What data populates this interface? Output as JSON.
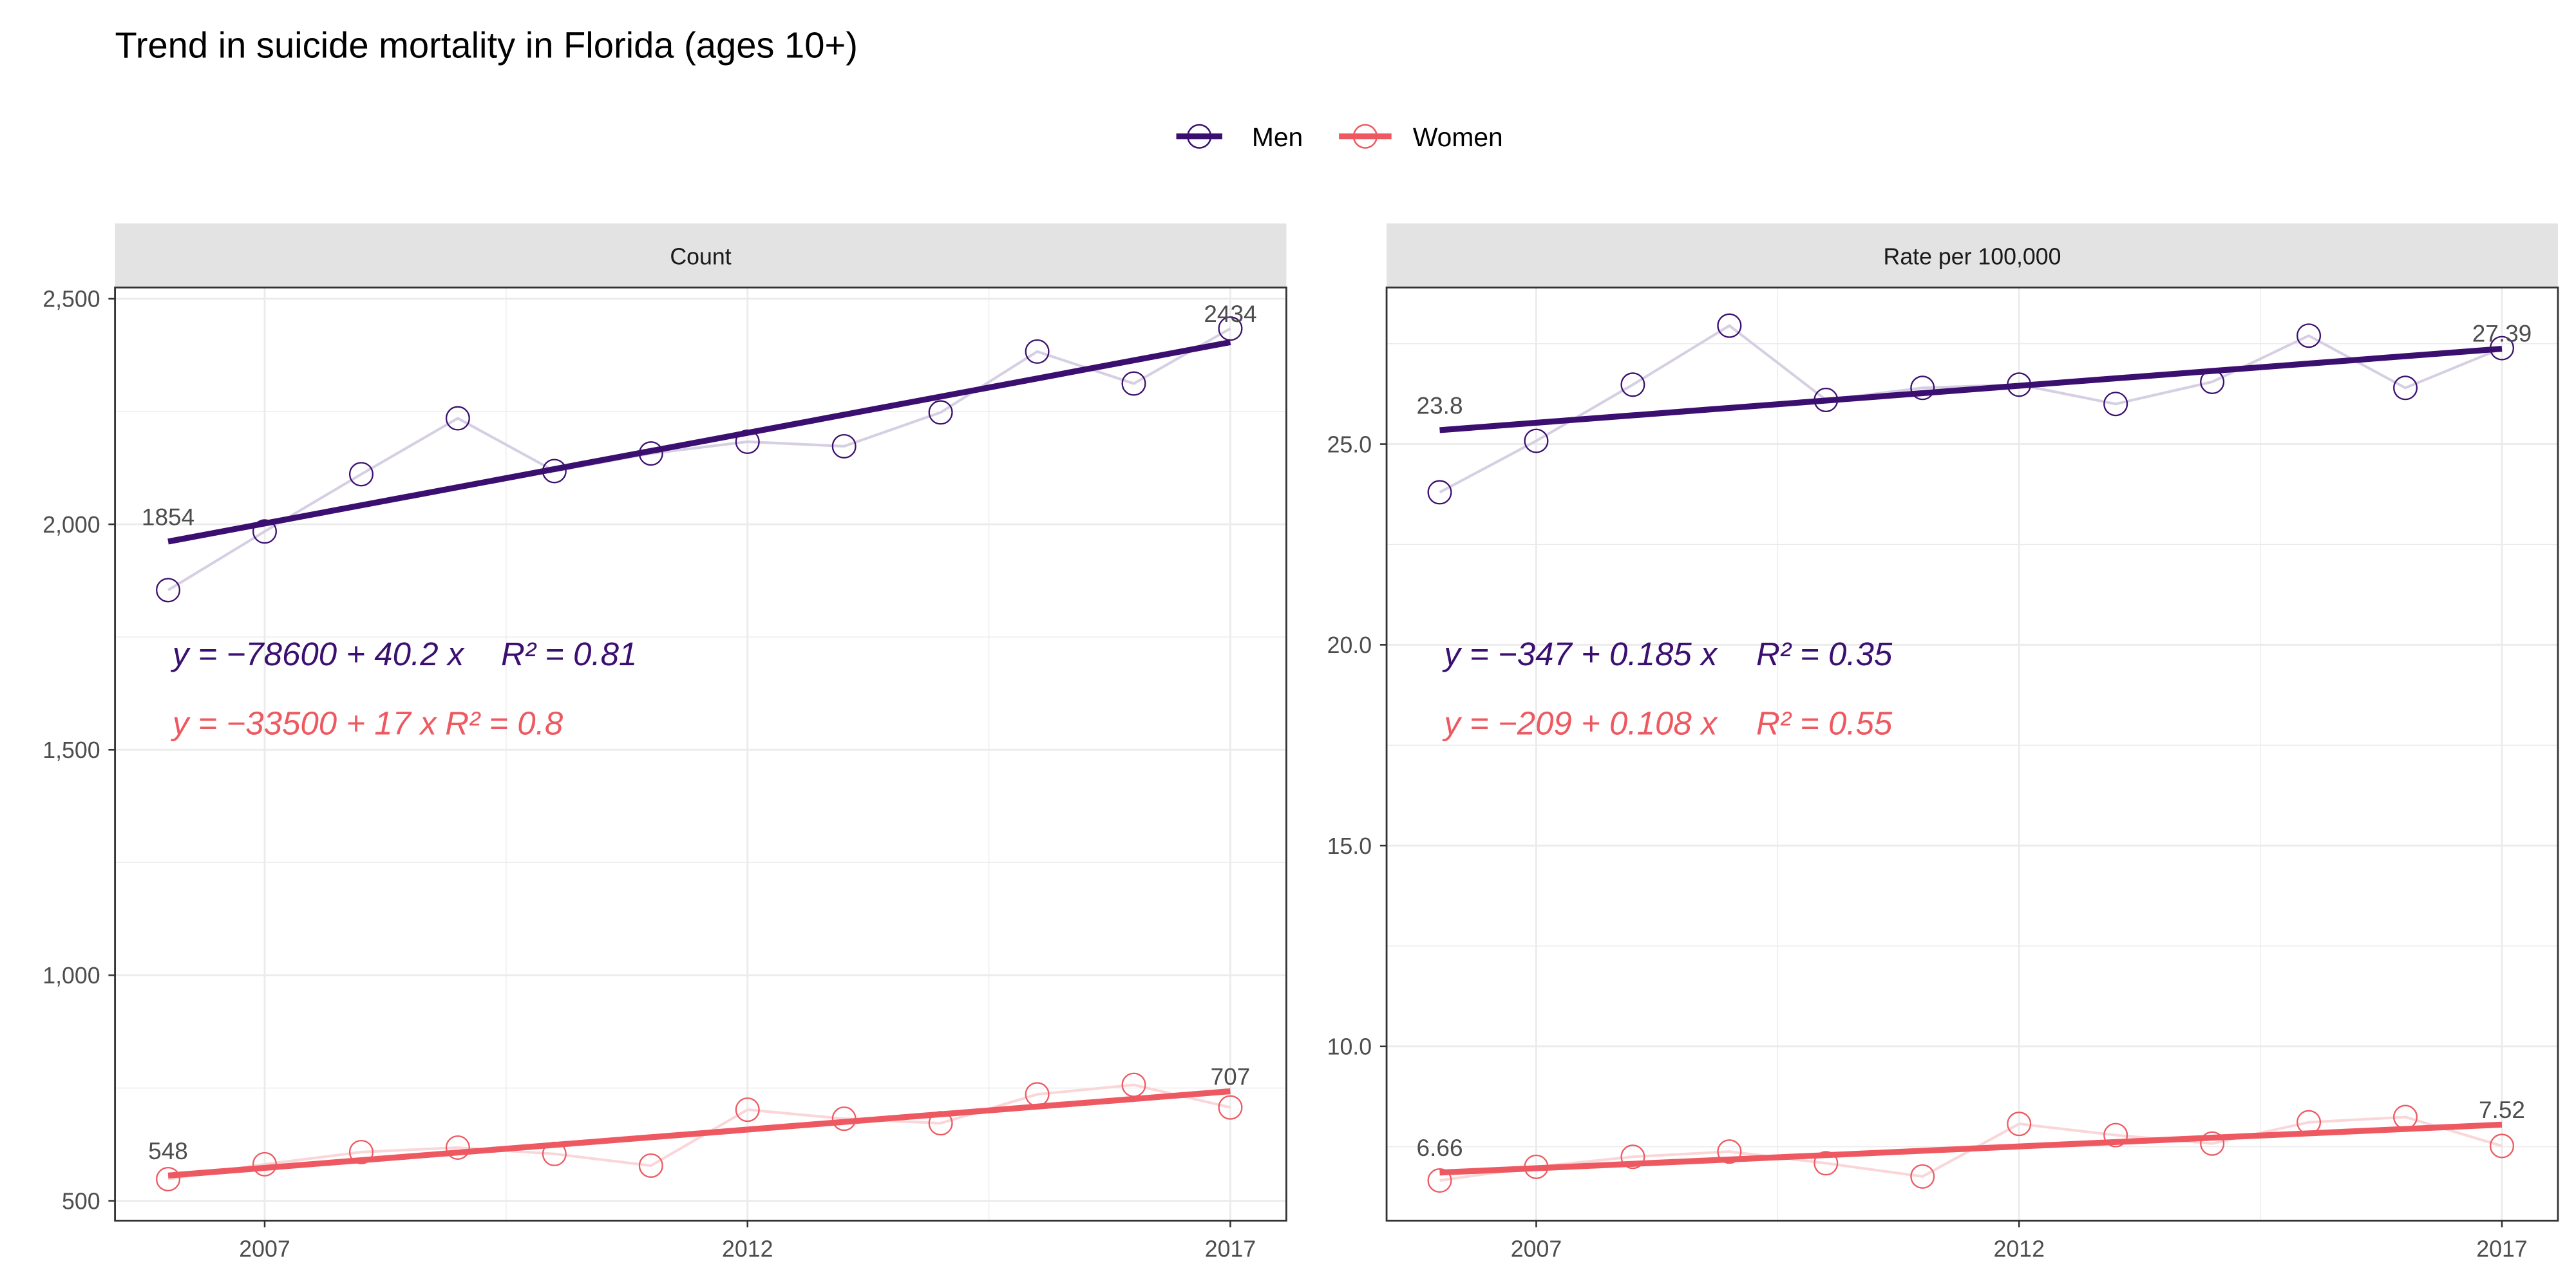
{
  "chart_data": [
    {
      "type": "line",
      "title": "Trend in suicide mortality in Florida (ages 10+)",
      "panel": "Count",
      "x": [
        2006,
        2007,
        2008,
        2009,
        2010,
        2011,
        2012,
        2013,
        2014,
        2015,
        2016,
        2017
      ],
      "series": [
        {
          "name": "Men",
          "values": [
            1854,
            1984,
            2111,
            2235,
            2118,
            2157,
            2183,
            2173,
            2248,
            2383,
            2312,
            2434
          ],
          "equation": "y = −78600 + 40.2 x",
          "r2": "R² = 0.81",
          "first_label": "1854",
          "last_label": "2434"
        },
        {
          "name": "Women",
          "values": [
            548,
            581,
            608,
            618,
            604,
            578,
            702,
            682,
            672,
            736,
            757,
            707
          ],
          "equation": "y = −33500 + 17 x",
          "r2": "R² = 0.8",
          "first_label": "548",
          "last_label": "707"
        }
      ],
      "ylim": [
        456,
        2525
      ],
      "yticks": [
        500,
        1000,
        1500,
        2000,
        2500
      ],
      "ytick_labels": [
        "500",
        "1,000",
        "1,500",
        "2,000",
        "2,500"
      ],
      "xlim": [
        2005.45,
        2017.58
      ],
      "xticks": [
        2007,
        2012,
        2017
      ],
      "xtick_labels": [
        "2007",
        "2012",
        "2017"
      ]
    },
    {
      "type": "line",
      "panel": "Rate per 100,000",
      "x": [
        2006,
        2007,
        2008,
        2009,
        2010,
        2011,
        2012,
        2013,
        2014,
        2015,
        2016,
        2017
      ],
      "series": [
        {
          "name": "Men",
          "values": [
            23.8,
            25.08,
            26.48,
            27.95,
            26.1,
            26.4,
            26.48,
            26.0,
            26.55,
            27.7,
            26.4,
            27.39
          ],
          "equation": "y = −347 + 0.185 x",
          "r2": "R² = 0.35",
          "first_label": "23.8",
          "last_label": "27.39"
        },
        {
          "name": "Women",
          "values": [
            6.66,
            7.0,
            7.25,
            7.38,
            7.09,
            6.76,
            8.07,
            7.79,
            7.58,
            8.11,
            8.24,
            7.52
          ],
          "equation": "y = −209 + 0.108 x",
          "r2": "R² = 0.55",
          "first_label": "6.66",
          "last_label": "7.52"
        }
      ],
      "ylim": [
        5.66,
        28.9
      ],
      "yticks": [
        10,
        15,
        20,
        25
      ],
      "ytick_labels": [
        "10.0",
        "15.0",
        "20.0",
        "25.0"
      ],
      "xlim": [
        2005.45,
        2017.58
      ],
      "xticks": [
        2007,
        2012,
        2017
      ],
      "xtick_labels": [
        "2007",
        "2012",
        "2017"
      ]
    }
  ],
  "title": "Trend in suicide mortality in Florida (ages 10+)",
  "legend": {
    "position": "top",
    "items": [
      {
        "label": "Men",
        "color": "#3b0f70",
        "faded": "#d6cfe3"
      },
      {
        "label": "Women",
        "color": "#ee5961",
        "faded": "#fad6d8"
      }
    ]
  }
}
